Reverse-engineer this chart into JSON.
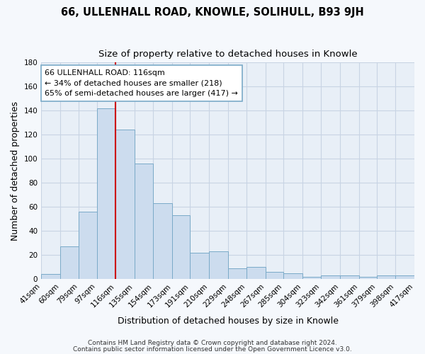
{
  "title": "66, ULLENHALL ROAD, KNOWLE, SOLIHULL, B93 9JH",
  "subtitle": "Size of property relative to detached houses in Knowle",
  "xlabel": "Distribution of detached houses by size in Knowle",
  "ylabel": "Number of detached properties",
  "bin_labels": [
    "41sqm",
    "60sqm",
    "79sqm",
    "97sqm",
    "116sqm",
    "135sqm",
    "154sqm",
    "173sqm",
    "191sqm",
    "210sqm",
    "229sqm",
    "248sqm",
    "267sqm",
    "285sqm",
    "304sqm",
    "323sqm",
    "342sqm",
    "361sqm",
    "379sqm",
    "398sqm",
    "417sqm"
  ],
  "bin_edges": [
    41,
    60,
    79,
    97,
    116,
    135,
    154,
    173,
    191,
    210,
    229,
    248,
    267,
    285,
    304,
    323,
    342,
    361,
    379,
    398,
    417
  ],
  "bar_heights": [
    4,
    27,
    56,
    142,
    124,
    96,
    63,
    53,
    22,
    23,
    9,
    10,
    6,
    5,
    2,
    3,
    3,
    2,
    3,
    3
  ],
  "bar_color": "#ccdcee",
  "bar_edge_color": "#7aaac8",
  "vline_x": 116,
  "vline_color": "#cc0000",
  "ylim": [
    0,
    180
  ],
  "yticks": [
    0,
    20,
    40,
    60,
    80,
    100,
    120,
    140,
    160,
    180
  ],
  "annotation_text": "66 ULLENHALL ROAD: 116sqm\n← 34% of detached houses are smaller (218)\n65% of semi-detached houses are larger (417) →",
  "footer_line1": "Contains HM Land Registry data © Crown copyright and database right 2024.",
  "footer_line2": "Contains public sector information licensed under the Open Government Licence v3.0.",
  "plot_bg_color": "#e8eff7",
  "fig_bg_color": "#f5f8fc",
  "grid_color": "#c8d4e4",
  "title_fontsize": 10.5,
  "subtitle_fontsize": 9.5,
  "label_fontsize": 9,
  "tick_fontsize": 7.5,
  "annotation_fontsize": 8,
  "footer_fontsize": 6.5
}
